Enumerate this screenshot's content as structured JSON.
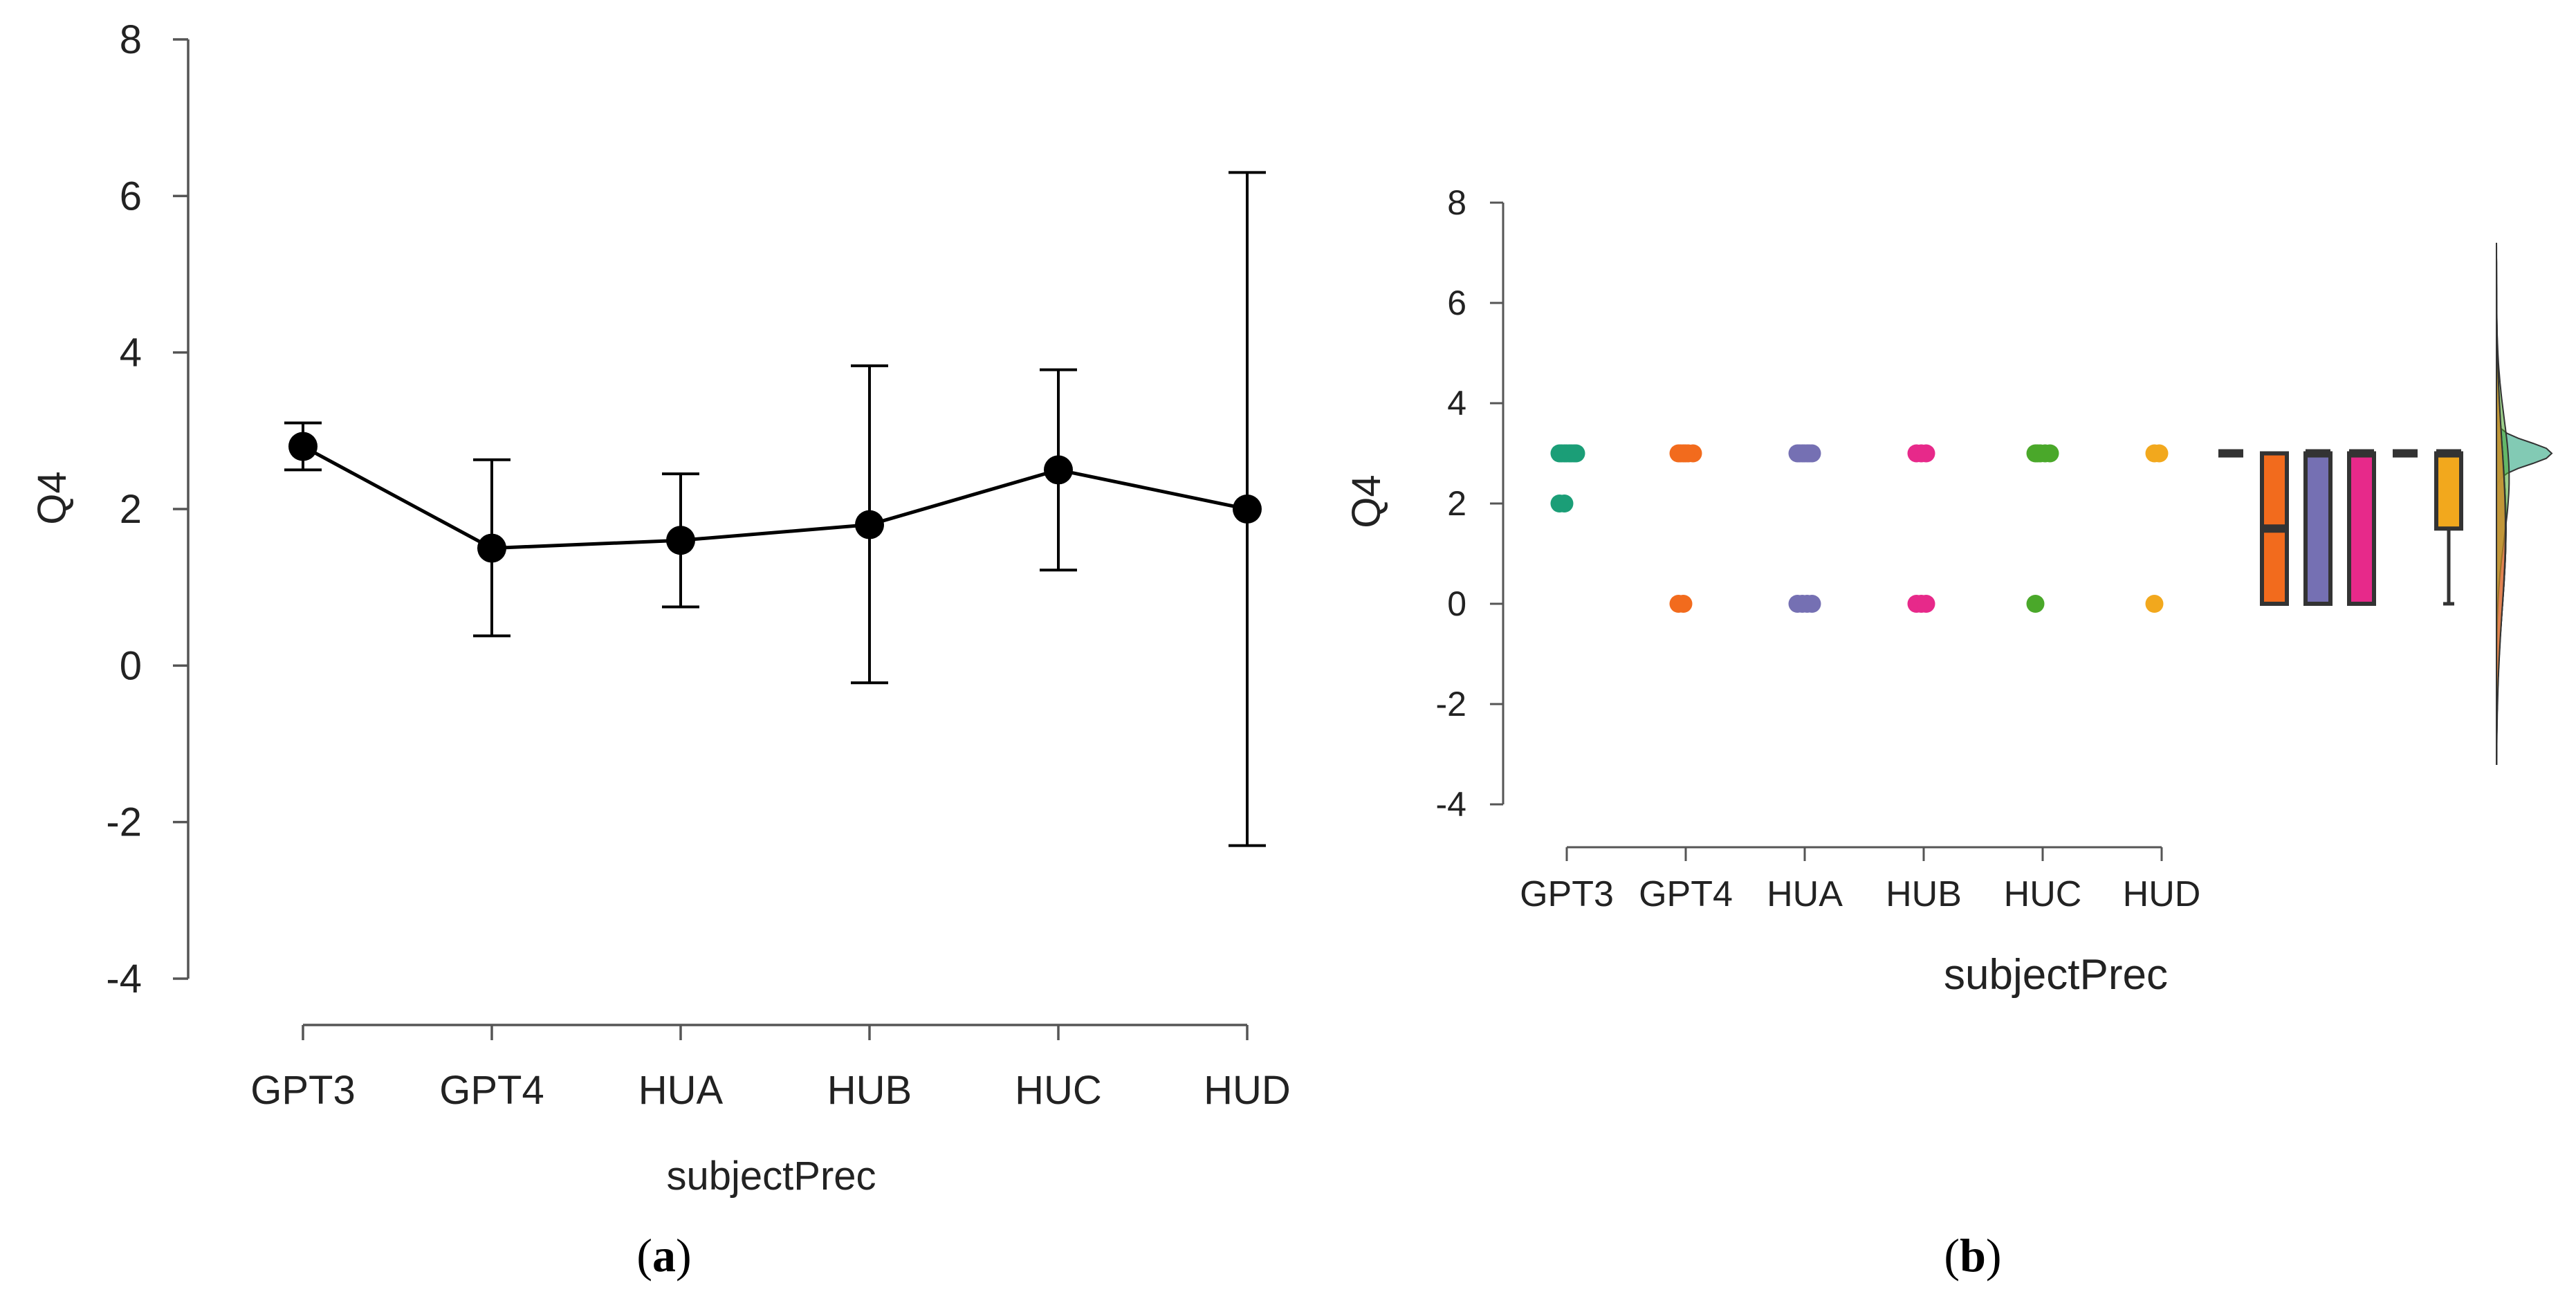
{
  "chart_data": [
    {
      "type": "line",
      "panel_label": "(a)",
      "panel_letter": "a",
      "xlabel": "subjectPrec",
      "ylabel": "Q4",
      "categories": [
        "GPT3",
        "GPT4",
        "HUA",
        "HUB",
        "HUC",
        "HUD"
      ],
      "values": [
        2.8,
        1.5,
        1.6,
        1.8,
        2.5,
        2.0
      ],
      "ci_lower": [
        2.5,
        0.38,
        0.75,
        -0.22,
        1.22,
        -2.3
      ],
      "ci_upper": [
        3.1,
        2.63,
        2.45,
        3.83,
        3.78,
        6.3
      ],
      "ylim": [
        -4,
        8
      ],
      "yticks": [
        "-4",
        "-2",
        "0",
        "2",
        "4",
        "6",
        "8"
      ],
      "grid": false,
      "colors": {
        "line": "#000000",
        "point": "#000000"
      }
    },
    {
      "type": "scatter",
      "panel_label": "(b)",
      "panel_letter": "b",
      "xlabel": "subjectPrec",
      "ylabel": "Q4",
      "categories": [
        "GPT3",
        "GPT4",
        "HUA",
        "HUB",
        "HUC",
        "HUD"
      ],
      "ylim": [
        -4,
        8
      ],
      "yticks": [
        "-4",
        "-2",
        "0",
        "2",
        "4",
        "6",
        "8"
      ],
      "grid": false,
      "series": [
        {
          "name": "GPT3",
          "color": "#1b9e77",
          "points": [
            3,
            3,
            3,
            3,
            3,
            3,
            3,
            3,
            2,
            2
          ]
        },
        {
          "name": "GPT4",
          "color": "#f26b1d",
          "points": [
            3,
            3,
            3,
            3,
            3,
            3,
            0,
            0
          ]
        },
        {
          "name": "HUA",
          "color": "#7570b3",
          "points": [
            3,
            3,
            3,
            3,
            3,
            3,
            3,
            0,
            0,
            0,
            0
          ]
        },
        {
          "name": "HUB",
          "color": "#e7298a",
          "points": [
            3,
            3,
            3,
            0,
            0,
            0
          ]
        },
        {
          "name": "HUC",
          "color": "#4aa82a",
          "points": [
            3,
            3,
            3,
            3,
            3,
            0
          ]
        },
        {
          "name": "HUD",
          "color": "#f2a81d",
          "points": [
            3,
            3,
            0
          ]
        }
      ],
      "boxplots": [
        {
          "name": "GPT3",
          "color": "#1b9e77",
          "min": 3,
          "q1": 3,
          "median": 3,
          "q3": 3,
          "max": 3
        },
        {
          "name": "GPT4",
          "color": "#f26b1d",
          "min": 0,
          "q1": 0,
          "median": 1.5,
          "q3": 3,
          "max": 3
        },
        {
          "name": "HUA",
          "color": "#7570b3",
          "min": 0,
          "q1": 0,
          "median": 3,
          "q3": 3,
          "max": 3
        },
        {
          "name": "HUB",
          "color": "#e7298a",
          "min": 0,
          "q1": 0,
          "median": 3,
          "q3": 3,
          "max": 3
        },
        {
          "name": "HUC",
          "color": "#4aa82a",
          "min": 3,
          "q1": 3,
          "median": 3,
          "q3": 3,
          "max": 3
        },
        {
          "name": "HUD",
          "color": "#f2a81d",
          "min": 0,
          "q1": 1.5,
          "median": 3,
          "q3": 3,
          "max": 3
        }
      ],
      "densities": [
        {
          "name": "GPT3",
          "color": "#1b9e77",
          "mode": 3.0,
          "spread": 0.22
        },
        {
          "name": "GPT4",
          "color": "#f26b1d",
          "mode": 1.5,
          "spread": 1.6
        },
        {
          "name": "HUA",
          "color": "#7570b3",
          "mode": 1.5,
          "spread": 1.6
        },
        {
          "name": "HUB",
          "color": "#e7298a",
          "mode": 1.5,
          "spread": 1.6
        },
        {
          "name": "HUC",
          "color": "#4aa82a",
          "mode": 2.5,
          "spread": 1.2
        },
        {
          "name": "HUD",
          "color": "#f2a81d",
          "mode": 1.5,
          "spread": 1.7
        }
      ]
    }
  ]
}
